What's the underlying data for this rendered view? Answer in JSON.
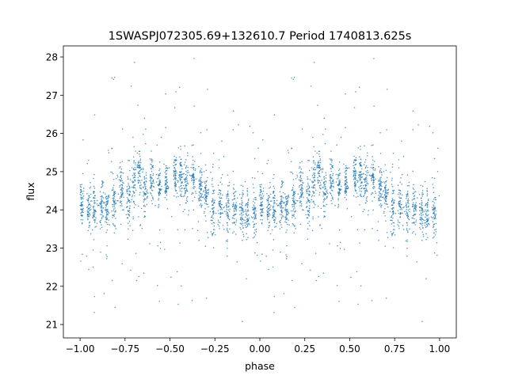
{
  "chart_data": {
    "type": "scatter",
    "title": "1SWASPJ072305.69+132610.7 Period 1740813.625s",
    "xlabel": "phase",
    "ylabel": "flux",
    "xlim": [
      -1.093,
      1.093
    ],
    "ylim": [
      20.65,
      28.29
    ],
    "xticks": [
      -1.0,
      -0.75,
      -0.5,
      -0.25,
      0.0,
      0.25,
      0.5,
      0.75,
      1.0
    ],
    "xtick_labels": [
      "−1.00",
      "−0.75",
      "−0.50",
      "−0.25",
      "0.00",
      "0.25",
      "0.50",
      "0.75",
      "1.00"
    ],
    "yticks": [
      21,
      22,
      23,
      24,
      25,
      26,
      27,
      28
    ],
    "ytick_labels": [
      "21",
      "22",
      "23",
      "24",
      "25",
      "26",
      "27",
      "28"
    ],
    "grid": false,
    "marker_color": "#1f77b4",
    "folding": "phase-folded data shown twice; points at phase p repeat at p+1",
    "streaks_first_cycle": [
      {
        "phase": -0.99,
        "flux": 24.2,
        "spread": 0.45
      },
      {
        "phase": -0.95,
        "flux": 24.0,
        "spread": 0.5
      },
      {
        "phase": -0.92,
        "flux": 24.0,
        "spread": 0.55
      },
      {
        "phase": -0.88,
        "flux": 24.1,
        "spread": 0.4
      },
      {
        "phase": -0.85,
        "flux": 24.0,
        "spread": 0.45
      },
      {
        "phase": -0.81,
        "flux": 24.2,
        "spread": 0.45
      },
      {
        "phase": -0.77,
        "flux": 24.6,
        "spread": 0.6
      },
      {
        "phase": -0.73,
        "flux": 24.3,
        "spread": 0.55
      },
      {
        "phase": -0.7,
        "flux": 24.6,
        "spread": 0.75
      },
      {
        "phase": -0.67,
        "flux": 25.0,
        "spread": 0.55
      },
      {
        "phase": -0.64,
        "flux": 24.5,
        "spread": 0.5
      },
      {
        "phase": -0.6,
        "flux": 24.8,
        "spread": 0.55
      },
      {
        "phase": -0.56,
        "flux": 24.6,
        "spread": 0.5
      },
      {
        "phase": -0.52,
        "flux": 24.7,
        "spread": 0.4
      },
      {
        "phase": -0.47,
        "flux": 24.9,
        "spread": 0.5
      },
      {
        "phase": -0.44,
        "flux": 24.9,
        "spread": 0.5
      },
      {
        "phase": -0.41,
        "flux": 24.8,
        "spread": 0.5
      },
      {
        "phase": -0.37,
        "flux": 24.9,
        "spread": 0.5
      },
      {
        "phase": -0.33,
        "flux": 24.6,
        "spread": 0.45
      },
      {
        "phase": -0.3,
        "flux": 24.4,
        "spread": 0.4
      },
      {
        "phase": -0.26,
        "flux": 24.0,
        "spread": 0.75
      },
      {
        "phase": -0.22,
        "flux": 24.1,
        "spread": 0.5
      },
      {
        "phase": -0.18,
        "flux": 24.0,
        "spread": 0.6
      },
      {
        "phase": -0.14,
        "flux": 24.0,
        "spread": 0.5
      },
      {
        "phase": -0.1,
        "flux": 23.9,
        "spread": 0.5
      },
      {
        "phase": -0.07,
        "flux": 23.9,
        "spread": 0.55
      },
      {
        "phase": -0.03,
        "flux": 23.9,
        "spread": 0.5
      }
    ]
  }
}
